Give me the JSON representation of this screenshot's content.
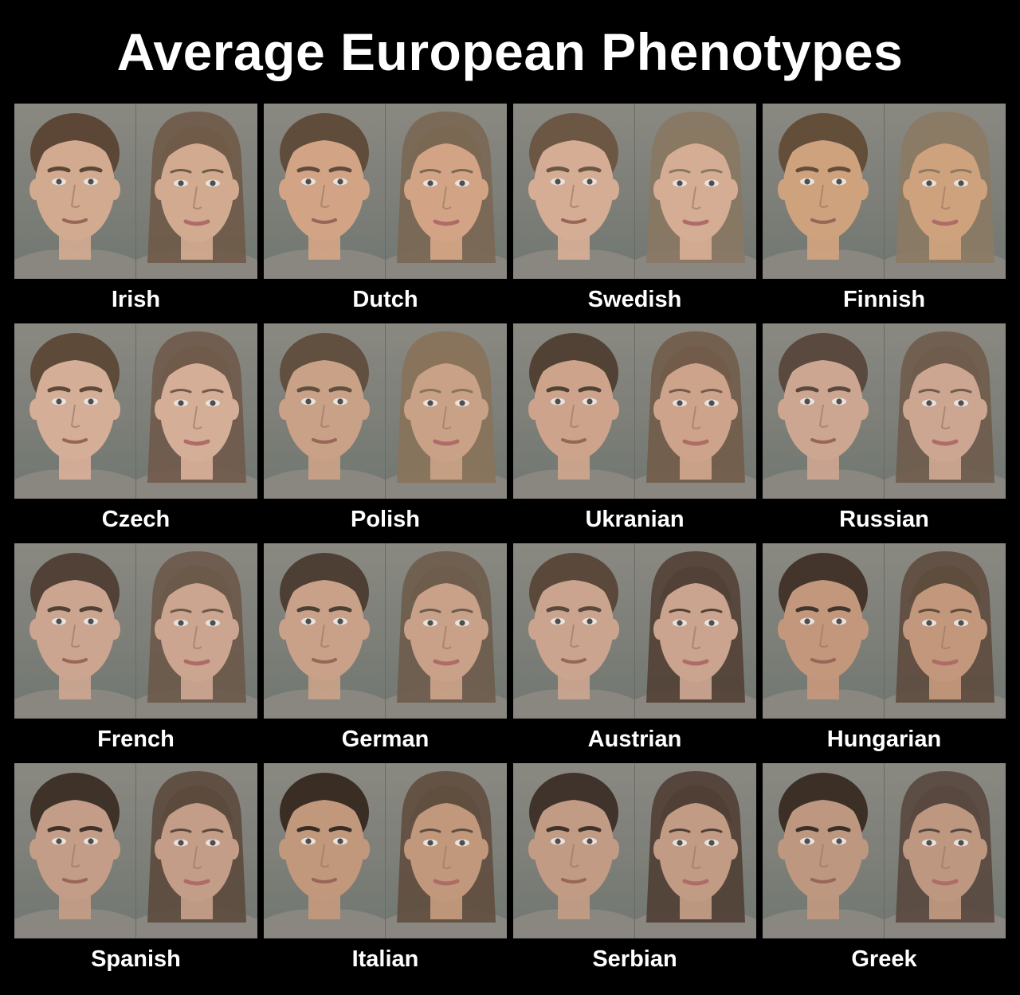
{
  "title": "Average European Phenotypes",
  "palette": {
    "background": "#000000",
    "text": "#ffffff"
  },
  "phenotypes": [
    {
      "label": "Irish",
      "skin": "#d8ae92",
      "hair_male": "#5a4330",
      "hair_female": "#6e5844"
    },
    {
      "label": "Dutch",
      "skin": "#d9a886",
      "hair_male": "#5e4836",
      "hair_female": "#7a6650"
    },
    {
      "label": "Swedish",
      "skin": "#dcb196",
      "hair_male": "#6b5440",
      "hair_female": "#8a7860"
    },
    {
      "label": "Finnish",
      "skin": "#d6a57e",
      "hair_male": "#614a34",
      "hair_female": "#8c7a62"
    },
    {
      "label": "Czech",
      "skin": "#ddb29a",
      "hair_male": "#5b4634",
      "hair_female": "#6f5847"
    },
    {
      "label": "Polish",
      "skin": "#cfa488",
      "hair_male": "#5f4b3b",
      "hair_female": "#8a7257"
    },
    {
      "label": "Ukranian",
      "skin": "#d4a88c",
      "hair_male": "#4e3d2f",
      "hair_female": "#715a45"
    },
    {
      "label": "Russian",
      "skin": "#d3aa92",
      "hair_male": "#56453a",
      "hair_female": "#6e5a48"
    },
    {
      "label": "French",
      "skin": "#d2a992",
      "hair_male": "#4e3c30",
      "hair_female": "#6a5646"
    },
    {
      "label": "German",
      "skin": "#cfa489",
      "hair_male": "#4a3a2e",
      "hair_female": "#6d5a48"
    },
    {
      "label": "Austrian",
      "skin": "#d1a891",
      "hair_male": "#574536",
      "hair_female": "#4f3c30"
    },
    {
      "label": "Hungarian",
      "skin": "#c99a7c",
      "hair_male": "#3e2f25",
      "hair_female": "#5c4838"
    },
    {
      "label": "Spanish",
      "skin": "#c9a088",
      "hair_male": "#3a2c22",
      "hair_female": "#5a4637"
    },
    {
      "label": "Italian",
      "skin": "#c89b7c",
      "hair_male": "#33261d",
      "hair_female": "#5e4a3a"
    },
    {
      "label": "Serbian",
      "skin": "#c89e86",
      "hair_male": "#3b2d24",
      "hair_female": "#4c3a2f"
    },
    {
      "label": "Greek",
      "skin": "#c49a80",
      "hair_male": "#36291f",
      "hair_female": "#56443a"
    }
  ]
}
